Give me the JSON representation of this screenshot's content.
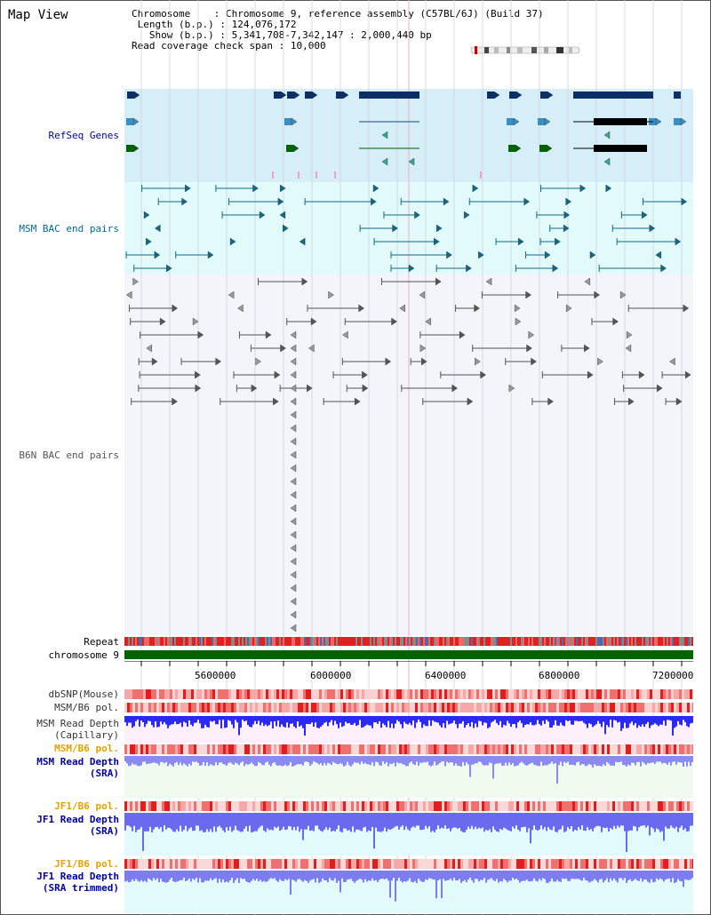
{
  "view": {
    "title": "Map View",
    "info": {
      "chromosome_label": "Chromosome",
      "chromosome_value": "Chromosome 9, reference assembly (C57BL/6J) (Build 37)",
      "length_label": "Length (b.p.)",
      "length_value": "124,076,172",
      "show_label": "Show (b.p.)",
      "show_value": "5,341,708-7,342,147 : 2,000,440 bp",
      "span_label": "Read coverage check span",
      "span_value": "10,000"
    }
  },
  "tracks": {
    "refseq": {
      "label": "RefSeq Genes",
      "color": "#00008b"
    },
    "msm_bac": {
      "label": "MSM BAC end pairs",
      "color": "#006b8f"
    },
    "b6n_bac": {
      "label": "B6N BAC end pairs",
      "color": "#555555"
    },
    "repeat": {
      "label": "Repeat"
    },
    "chromosome": {
      "label": "chromosome 9"
    },
    "dbsnp": {
      "label": "dbSNP(Mouse)"
    },
    "msm_b6_pol_1": {
      "label": "MSM/B6 pol."
    },
    "msm_read_depth_cap": {
      "line1": "MSM Read Depth",
      "line2": "(Capillary)"
    },
    "msm_b6_pol_2": {
      "label": "MSM/B6 pol."
    },
    "msm_read_depth_sra": {
      "line1": "MSM Read Depth",
      "line2": "(SRA)"
    },
    "jf1_b6_pol_1": {
      "label": "JF1/B6 pol."
    },
    "jf1_read_depth_sra": {
      "line1": "JF1 Read Depth",
      "line2": "(SRA)"
    },
    "jf1_b6_pol_2": {
      "label": "JF1/B6 pol."
    },
    "jf1_read_depth_trim": {
      "line1": "JF1 Read Depth",
      "line2": "(SRA trimmed)"
    }
  },
  "axis": {
    "ticks": [
      "5600000",
      "6000000",
      "6400000",
      "6800000",
      "7200000"
    ]
  },
  "colors": {
    "refseq_bg": "#d6eef8",
    "msm_bac_bg": "#e3fafa",
    "b6n_bac_bg": "#f4f4fb",
    "chromosome": "#006400",
    "repeat_red": "#dd2222",
    "depth_blue": "#2a2af0",
    "depth_light": "#8a8af0",
    "pol_orange": "#e8a000"
  }
}
